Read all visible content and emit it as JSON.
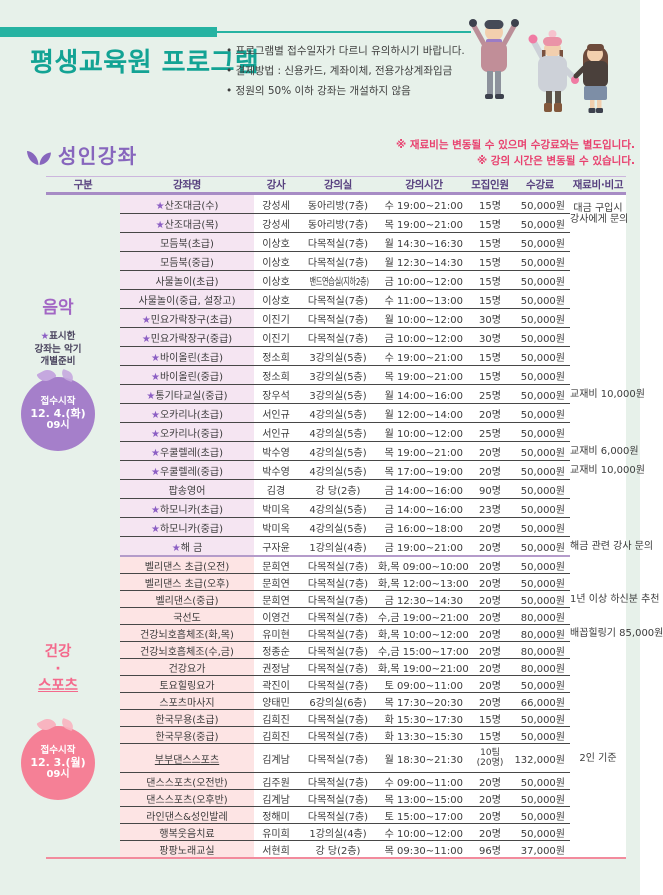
{
  "banner": {
    "title": "평생교육원 프로그램",
    "bullets": [
      "프로그램별 접수일자가 다르니 유의하시기 바랍니다.",
      "결제방법 : 신용카드, 계좌이체, 전용가상계좌입금",
      "정원의 50% 이하 강좌는 개설하지 않음"
    ]
  },
  "section": {
    "title": "성인강좌",
    "notes": [
      "※ 재료비는 변동될 수 있으며 수강료와는 별도입니다.",
      "※ 강의 시간은 변동될 수 있습니다."
    ]
  },
  "colors": {
    "teal_bar": "#26b3a2",
    "title_teal": "#13a394",
    "section_purple": "#8766bd",
    "note_red": "#e8406e",
    "music_accent": "#a266c4",
    "music_row_bg": "#f5e5f2",
    "music_badge": "#a57fca",
    "health_accent": "#f4698c",
    "health_row_bg": "#fde4e4",
    "health_badge": "#f58096",
    "page_bg": "#e7f1ea"
  },
  "table": {
    "headers": [
      "구분",
      "강좌명",
      "강사",
      "강의실",
      "강의시간",
      "모집인원",
      "수강료",
      "재료비·비고"
    ],
    "groups": [
      {
        "id": "music",
        "label_lines": [
          "음악"
        ],
        "underline_index": -1,
        "note_star": "★",
        "note_lines": [
          "표시한",
          "강좌는 악기",
          "개별준비"
        ],
        "badge": [
          "접수시작",
          "12. 4.(화)",
          "09시"
        ],
        "row_count": 19
      },
      {
        "id": "health",
        "label_lines": [
          "건강",
          "·",
          "스포츠"
        ],
        "underline_index": 2,
        "badge": [
          "접수시작",
          "12. 3.(월)",
          "09시"
        ],
        "row_count": 17
      }
    ],
    "rows": [
      {
        "g": 0,
        "star": true,
        "name": "산조대금(수)",
        "inst": "강성세",
        "room": "동아리방(7층)",
        "time": "수 19:00~21:00",
        "cap": "15명",
        "fee": "50,000원",
        "note": "대금 구입시",
        "note2": "강사에게 문의",
        "ns": 2
      },
      {
        "g": 0,
        "star": true,
        "name": "산조대금(목)",
        "inst": "강성세",
        "room": "동아리방(7층)",
        "time": "목 19:00~21:00",
        "cap": "15명",
        "fee": "50,000원",
        "sn": true
      },
      {
        "g": 0,
        "name": "모듬북(초급)",
        "inst": "이상호",
        "room": "다목적실(7층)",
        "time": "월 14:30~16:30",
        "cap": "15명",
        "fee": "50,000원"
      },
      {
        "g": 0,
        "name": "모듬북(중급)",
        "inst": "이상호",
        "room": "다목적실(7층)",
        "time": "월 12:30~14:30",
        "cap": "15명",
        "fee": "50,000원"
      },
      {
        "g": 0,
        "name": "사물놀이(초급)",
        "inst": "이상호",
        "room": "밴드연습실(지하2층)",
        "rs": true,
        "time": "금 10:00~12:00",
        "cap": "15명",
        "fee": "50,000원"
      },
      {
        "g": 0,
        "name": "사물놀이(중급, 설장고)",
        "inst": "이상호",
        "room": "다목적실(7층)",
        "time": "수 11:00~13:00",
        "cap": "15명",
        "fee": "50,000원"
      },
      {
        "g": 0,
        "star": true,
        "name": "민요가락장구(초급)",
        "inst": "이진기",
        "room": "다목적실(7층)",
        "time": "월 10:00~12:00",
        "cap": "30명",
        "fee": "50,000원"
      },
      {
        "g": 0,
        "star": true,
        "name": "민요가락장구(중급)",
        "inst": "이진기",
        "room": "다목적실(7층)",
        "time": "금 10:00~12:00",
        "cap": "30명",
        "fee": "50,000원"
      },
      {
        "g": 0,
        "star": true,
        "name": "바이올린(초급)",
        "inst": "정소희",
        "room": "3강의실(5층)",
        "time": "수 19:00~21:00",
        "cap": "15명",
        "fee": "50,000원"
      },
      {
        "g": 0,
        "star": true,
        "name": "바이올린(중급)",
        "inst": "정소희",
        "room": "3강의실(5층)",
        "time": "목 19:00~21:00",
        "cap": "15명",
        "fee": "50,000원"
      },
      {
        "g": 0,
        "star": true,
        "name": "통기타교실(중급)",
        "inst": "장우석",
        "room": "3강의실(5층)",
        "time": "월 14:00~16:00",
        "cap": "25명",
        "fee": "50,000원",
        "note": "교재비 10,000원"
      },
      {
        "g": 0,
        "star": true,
        "name": "오카리나(초급)",
        "inst": "서인규",
        "room": "4강의실(5층)",
        "time": "월 12:00~14:00",
        "cap": "20명",
        "fee": "50,000원"
      },
      {
        "g": 0,
        "star": true,
        "name": "오카리나(중급)",
        "inst": "서인규",
        "room": "4강의실(5층)",
        "time": "월 10:00~12:00",
        "cap": "25명",
        "fee": "50,000원"
      },
      {
        "g": 0,
        "star": true,
        "name": "우쿨렐레(초급)",
        "inst": "박수영",
        "room": "4강의실(5층)",
        "time": "목 19:00~21:00",
        "cap": "20명",
        "fee": "50,000원",
        "note": "교재비 6,000원"
      },
      {
        "g": 0,
        "star": true,
        "name": "우쿨렐레(중급)",
        "inst": "박수영",
        "room": "4강의실(5층)",
        "time": "목 17:00~19:00",
        "cap": "20명",
        "fee": "50,000원",
        "note": "교재비 10,000원"
      },
      {
        "g": 0,
        "name": "팝송영어",
        "inst": "김경",
        "room": "강 당(2층)",
        "time": "금 14:00~16:00",
        "cap": "90명",
        "fee": "50,000원"
      },
      {
        "g": 0,
        "star": true,
        "name": "하모니카(초급)",
        "inst": "박미옥",
        "room": "4강의실(5층)",
        "time": "금 14:00~16:00",
        "cap": "23명",
        "fee": "50,000원"
      },
      {
        "g": 0,
        "star": true,
        "name": "하모니카(중급)",
        "inst": "박미옥",
        "room": "4강의실(5층)",
        "time": "금 16:00~18:00",
        "cap": "20명",
        "fee": "50,000원"
      },
      {
        "g": 0,
        "star": true,
        "name": "해 금",
        "inst": "구자윤",
        "room": "1강의실(4층)",
        "time": "금 19:00~21:00",
        "cap": "20명",
        "fee": "50,000원",
        "note": "해금 관련 강사 문의",
        "secdiv": true
      },
      {
        "g": 1,
        "name": "벨리댄스 초급(오전)",
        "inst": "문희연",
        "room": "다목적실(7층)",
        "time": "화,목 09:00~10:00",
        "cap": "20명",
        "fee": "50,000원"
      },
      {
        "g": 1,
        "name": "벨리댄스 초급(오후)",
        "inst": "문희연",
        "room": "다목적실(7층)",
        "time": "화,목 12:00~13:00",
        "cap": "20명",
        "fee": "50,000원"
      },
      {
        "g": 1,
        "name": "벨리댄스(중급)",
        "inst": "문희연",
        "room": "다목적실(7층)",
        "time": "금 12:30~14:30",
        "cap": "20명",
        "fee": "50,000원",
        "note": "1년 이상 하신분 추천"
      },
      {
        "g": 1,
        "name": "국선도",
        "inst": "이영건",
        "room": "다목적실(7층)",
        "time": "수,금 19:00~21:00",
        "cap": "20명",
        "fee": "80,000원"
      },
      {
        "g": 1,
        "name": "건강뇌호흡체조(화,목)",
        "inst": "유미현",
        "room": "다목적실(7층)",
        "time": "화,목 10:00~12:00",
        "cap": "20명",
        "fee": "80,000원",
        "note": "배꼽힐링기 85,000원"
      },
      {
        "g": 1,
        "name": "건강뇌호흡체조(수,금)",
        "inst": "정종순",
        "room": "다목적실(7층)",
        "time": "수,금 15:00~17:00",
        "cap": "20명",
        "fee": "80,000원"
      },
      {
        "g": 1,
        "name": "건강요가",
        "inst": "권정남",
        "room": "다목적실(7층)",
        "time": "화,목 19:00~21:00",
        "cap": "20명",
        "fee": "80,000원"
      },
      {
        "g": 1,
        "name": "토요힐링요가",
        "inst": "곽진이",
        "room": "다목적실(7층)",
        "time": "토 09:00~11:00",
        "cap": "20명",
        "fee": "50,000원"
      },
      {
        "g": 1,
        "name": "스포츠마사지",
        "inst": "양태민",
        "room": "6강의실(6층)",
        "time": "목 17:30~20:30",
        "cap": "20명",
        "fee": "66,000원"
      },
      {
        "g": 1,
        "name": "한국무용(초급)",
        "inst": "김희진",
        "room": "다목적실(7층)",
        "time": "화 15:30~17:30",
        "cap": "15명",
        "fee": "50,000원"
      },
      {
        "g": 1,
        "name": "한국무용(중급)",
        "inst": "김희진",
        "room": "다목적실(7층)",
        "time": "화 13:30~15:30",
        "cap": "15명",
        "fee": "50,000원"
      },
      {
        "g": 1,
        "name": "부부댄스스포츠",
        "u": true,
        "inst": "김계남",
        "room": "다목적실(7층)",
        "time": "월 18:30~21:30",
        "cap": "10팀",
        "cap2": "(20명)",
        "fee": "132,000원",
        "note": "2인 기준",
        "tall": true
      },
      {
        "g": 1,
        "name": "댄스스포츠(오전반)",
        "inst": "김주원",
        "room": "다목적실(7층)",
        "time": "수 09:00~11:00",
        "cap": "20명",
        "fee": "50,000원"
      },
      {
        "g": 1,
        "name": "댄스스포츠(오후반)",
        "inst": "김계남",
        "room": "다목적실(7층)",
        "time": "목 13:00~15:00",
        "cap": "20명",
        "fee": "50,000원"
      },
      {
        "g": 1,
        "name": "라인댄스&성인발레",
        "inst": "정해미",
        "room": "다목적실(7층)",
        "time": "토 15:00~17:00",
        "cap": "20명",
        "fee": "50,000원"
      },
      {
        "g": 1,
        "name": "행복웃음치료",
        "inst": "유미희",
        "room": "1강의실(4층)",
        "time": "수 10:00~12:00",
        "cap": "20명",
        "fee": "50,000원"
      },
      {
        "g": 1,
        "name": "팡팡노래교실",
        "inst": "서현희",
        "room": "강 당(2층)",
        "time": "목 09:30~11:00",
        "cap": "96명",
        "fee": "37,000원"
      }
    ]
  }
}
